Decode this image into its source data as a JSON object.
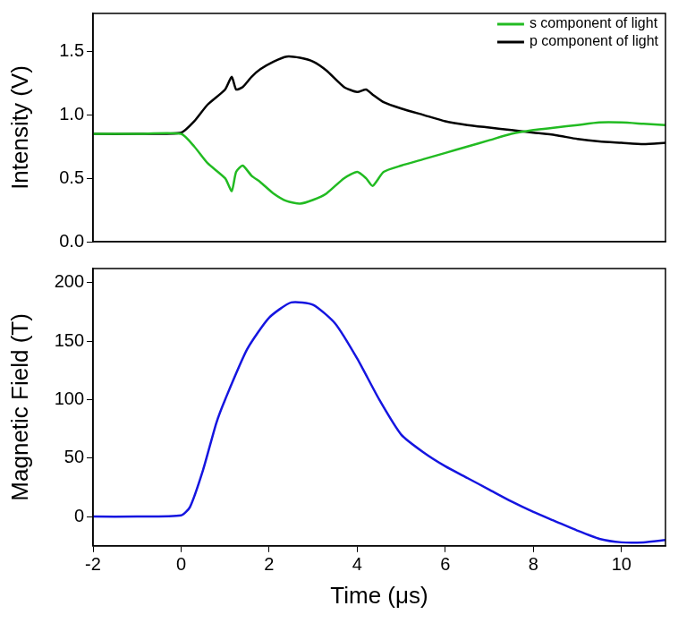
{
  "chart_data": [
    {
      "type": "line",
      "y_label": "Intensity (V)",
      "xlim": [
        -2,
        11
      ],
      "xticks": [
        -2,
        0,
        2,
        4,
        6,
        8,
        10
      ],
      "ylim": [
        0,
        1.8
      ],
      "yticks": [
        {
          "value": 0,
          "label": "0.0"
        },
        0.5,
        {
          "value": 1,
          "label": "1.0"
        },
        1.5
      ],
      "tick_labels": "y",
      "grid": false,
      "legend": "upper right",
      "series": [
        {
          "name": "s component of light",
          "color": "#22bb22",
          "x": [
            -2,
            -1,
            0,
            0.3,
            0.6,
            1.0,
            1.15,
            1.25,
            1.4,
            1.6,
            1.8,
            2.1,
            2.4,
            2.7,
            3.0,
            3.3,
            3.7,
            4.0,
            4.2,
            4.35,
            4.6,
            5.0,
            5.5,
            6.0,
            6.5,
            7.0,
            7.5,
            8.0,
            8.5,
            9.0,
            9.5,
            10.0,
            10.5,
            11.0
          ],
          "values": [
            0.85,
            0.85,
            0.85,
            0.75,
            0.62,
            0.5,
            0.4,
            0.55,
            0.6,
            0.52,
            0.47,
            0.38,
            0.32,
            0.3,
            0.33,
            0.38,
            0.5,
            0.55,
            0.5,
            0.44,
            0.55,
            0.6,
            0.65,
            0.7,
            0.75,
            0.8,
            0.85,
            0.88,
            0.9,
            0.92,
            0.94,
            0.94,
            0.93,
            0.92
          ]
        },
        {
          "name": "p component of light",
          "color": "#000000",
          "x": [
            -2,
            -1,
            0,
            0.3,
            0.6,
            1.0,
            1.15,
            1.25,
            1.4,
            1.6,
            1.8,
            2.1,
            2.4,
            2.7,
            3.0,
            3.3,
            3.7,
            4.0,
            4.2,
            4.35,
            4.6,
            5.0,
            5.5,
            6.0,
            6.5,
            7.0,
            7.5,
            8.0,
            8.5,
            9.0,
            9.5,
            10.0,
            10.5,
            11.0
          ],
          "values": [
            0.85,
            0.85,
            0.86,
            0.95,
            1.08,
            1.2,
            1.3,
            1.2,
            1.22,
            1.3,
            1.36,
            1.42,
            1.46,
            1.45,
            1.42,
            1.35,
            1.22,
            1.18,
            1.2,
            1.16,
            1.1,
            1.05,
            1.0,
            0.95,
            0.92,
            0.9,
            0.88,
            0.86,
            0.84,
            0.81,
            0.79,
            0.78,
            0.77,
            0.78
          ]
        }
      ]
    },
    {
      "type": "line",
      "x_label": "Time (μs)",
      "y_label": "Magnetic Field (T)",
      "xlim": [
        -2,
        11
      ],
      "xticks": [
        -2,
        0,
        2,
        4,
        6,
        8,
        10
      ],
      "ylim": [
        -25,
        212
      ],
      "yticks": [
        0,
        50,
        100,
        150,
        200
      ],
      "grid": false,
      "series": [
        {
          "name": "Magnetic Field",
          "color": "#1515e0",
          "x": [
            -2,
            -1,
            0,
            0.2,
            0.5,
            0.8,
            1.0,
            1.5,
            2.0,
            2.5,
            3.0,
            3.5,
            4.0,
            4.5,
            5.0,
            5.5,
            6.0,
            6.5,
            7.0,
            7.5,
            8.0,
            8.5,
            9.0,
            9.5,
            10.0,
            10.5,
            11.0
          ],
          "values": [
            0,
            0,
            1,
            8,
            40,
            80,
            100,
            143,
            170,
            183,
            181,
            165,
            135,
            100,
            70,
            55,
            43,
            33,
            23,
            13,
            4,
            -4,
            -12,
            -19,
            -22,
            -22,
            -20
          ]
        }
      ]
    }
  ]
}
